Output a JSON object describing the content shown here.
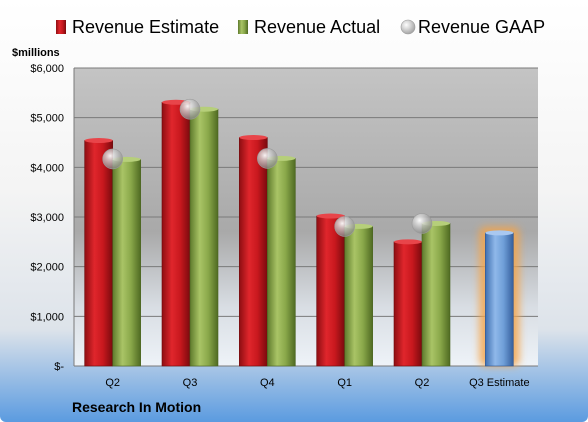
{
  "chart_data": {
    "type": "bar",
    "title": "",
    "unit_label": "$millions",
    "footer_label": "Research In Motion",
    "categories": [
      "Q2",
      "Q3",
      "Q4",
      "Q1",
      "Q2",
      "Q3 Estimate"
    ],
    "ylim": [
      0,
      6000
    ],
    "y_ticks": [
      0,
      1000,
      2000,
      3000,
      4000,
      5000,
      6000
    ],
    "y_tick_labels": [
      "$-",
      "$1,000",
      "$2,000",
      "$3,000",
      "$4,000",
      "$5,000",
      "$6,000"
    ],
    "grid": true,
    "legend_position": "top",
    "series": [
      {
        "name": "Revenue Estimate",
        "kind": "bar",
        "color": "#c8181e",
        "values": [
          4540,
          5310,
          4600,
          3020,
          2500,
          null
        ]
      },
      {
        "name": "Revenue Actual",
        "kind": "bar",
        "color": "#8aa84a",
        "values": [
          4160,
          5170,
          4180,
          2810,
          2870,
          null
        ]
      },
      {
        "name": "Revenue GAAP",
        "kind": "marker",
        "color": "#b8b8b8",
        "values": [
          4170,
          5170,
          4180,
          2810,
          2870,
          null
        ]
      }
    ],
    "estimate": {
      "category_index": 5,
      "value": 2680,
      "color": "#6f9fd8",
      "highlight_color": "#f5a44a"
    }
  }
}
